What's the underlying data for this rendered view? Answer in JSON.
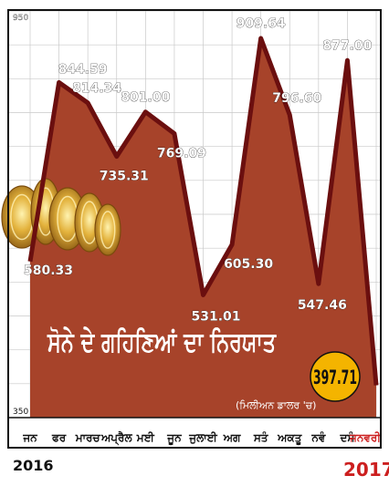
{
  "chart_data": {
    "type": "area",
    "title": "ਸੋਨੇ ਦੇ ਗਹਿਣਿਆਂ ਦਾ ਨਿਰਯਾਤ",
    "unit_note": "(ਮਿਲੀਅਨ ਡਾਲਰ 'ਚ)",
    "categories": [
      "ਜਨ",
      "ਫਰ",
      "ਮਾਰਚ",
      "ਅਪ੍ਰੈਲ",
      "ਮਈ",
      "ਜੂਨ",
      "ਜੁਲਾਈ",
      "ਅਗ",
      "ਸਤੰ",
      "ਅਕਤੂ",
      "ਨਵੰ",
      "ਦਸੰ",
      "ਜਨਵਰੀ"
    ],
    "value_labels": [
      "580.33",
      "844.59",
      "814.34",
      "735.31",
      "801.00",
      "769.09",
      "531.01",
      "605.30",
      "909.64",
      "796.60",
      "547.46",
      "877.00",
      "397.71"
    ],
    "values": [
      580.33,
      844.59,
      814.34,
      735.31,
      801.0,
      769.09,
      531.01,
      605.3,
      909.64,
      796.6,
      547.46,
      877.0,
      397.71
    ],
    "y_ticks": [
      "950",
      "350"
    ],
    "ylim": [
      350,
      950
    ],
    "year_start": "2016",
    "year_end": "2017",
    "highlight_label": "397.71",
    "colors": {
      "fill": "#a7432a",
      "line": "#6b0f0f",
      "grid": "#d48a68",
      "highlight_month": "#cc1f1f",
      "badge": "#f4b400",
      "title_text": "#ffffff"
    },
    "grid": true,
    "decoration": "gold-bangles-illustration"
  }
}
